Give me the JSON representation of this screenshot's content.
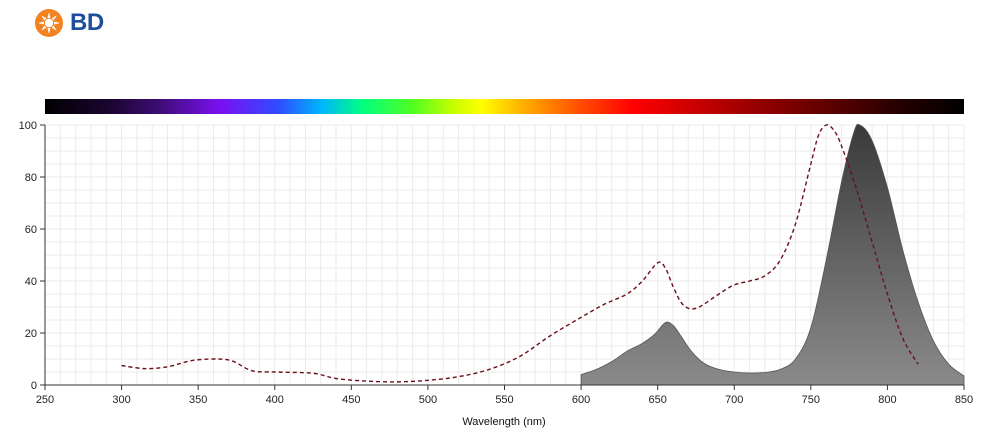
{
  "brand": {
    "name": "BD",
    "logo_color": "#f58220",
    "text_color": "#1f4f9c"
  },
  "chart_data": {
    "type": "area",
    "xlabel": "Wavelength (nm)",
    "ylabel": "",
    "xlim": [
      250,
      850
    ],
    "ylim": [
      0,
      100
    ],
    "x_ticks": [
      250,
      300,
      350,
      400,
      450,
      500,
      550,
      600,
      650,
      700,
      750,
      800,
      850
    ],
    "y_ticks": [
      0,
      20,
      40,
      60,
      80,
      100
    ],
    "grid": true,
    "spectrum_bar": true,
    "series": [
      {
        "style": "dashed-line",
        "color": "#6b0f1a",
        "points": [
          [
            300,
            7.5
          ],
          [
            315,
            6.3
          ],
          [
            330,
            7.0
          ],
          [
            345,
            9.3
          ],
          [
            360,
            10.0
          ],
          [
            372,
            9.3
          ],
          [
            385,
            5.5
          ],
          [
            400,
            5.0
          ],
          [
            425,
            4.5
          ],
          [
            440,
            2.5
          ],
          [
            460,
            1.5
          ],
          [
            480,
            1.2
          ],
          [
            500,
            1.8
          ],
          [
            520,
            3.2
          ],
          [
            540,
            6.0
          ],
          [
            560,
            11.0
          ],
          [
            580,
            19.0
          ],
          [
            600,
            26.0
          ],
          [
            615,
            31.0
          ],
          [
            630,
            35.0
          ],
          [
            640,
            40.0
          ],
          [
            650,
            47.0
          ],
          [
            655,
            45.0
          ],
          [
            660,
            38.0
          ],
          [
            665,
            32.0
          ],
          [
            670,
            29.5
          ],
          [
            675,
            29.5
          ],
          [
            680,
            31.0
          ],
          [
            690,
            35.0
          ],
          [
            700,
            38.5
          ],
          [
            710,
            40.0
          ],
          [
            720,
            42.0
          ],
          [
            730,
            48.0
          ],
          [
            740,
            62.0
          ],
          [
            750,
            85.0
          ],
          [
            755,
            96.0
          ],
          [
            760,
            100.0
          ],
          [
            765,
            98.0
          ],
          [
            770,
            92.0
          ],
          [
            780,
            75.0
          ],
          [
            790,
            55.0
          ],
          [
            800,
            35.0
          ],
          [
            810,
            18.0
          ],
          [
            820,
            8.0
          ]
        ]
      },
      {
        "style": "filled-area",
        "color": "#666666",
        "points": [
          [
            600,
            4.0
          ],
          [
            610,
            6.0
          ],
          [
            620,
            9.0
          ],
          [
            630,
            13.0
          ],
          [
            640,
            16.0
          ],
          [
            648,
            19.5
          ],
          [
            655,
            24.0
          ],
          [
            660,
            23.0
          ],
          [
            665,
            19.0
          ],
          [
            672,
            13.0
          ],
          [
            680,
            8.5
          ],
          [
            690,
            6.0
          ],
          [
            700,
            5.0
          ],
          [
            710,
            4.6
          ],
          [
            720,
            4.8
          ],
          [
            730,
            6.0
          ],
          [
            740,
            10.0
          ],
          [
            750,
            22.0
          ],
          [
            760,
            48.0
          ],
          [
            770,
            78.0
          ],
          [
            778,
            97.0
          ],
          [
            782,
            100.0
          ],
          [
            790,
            94.0
          ],
          [
            800,
            76.0
          ],
          [
            810,
            52.0
          ],
          [
            820,
            32.0
          ],
          [
            830,
            17.0
          ],
          [
            840,
            8.0
          ],
          [
            850,
            3.5
          ]
        ]
      }
    ]
  }
}
